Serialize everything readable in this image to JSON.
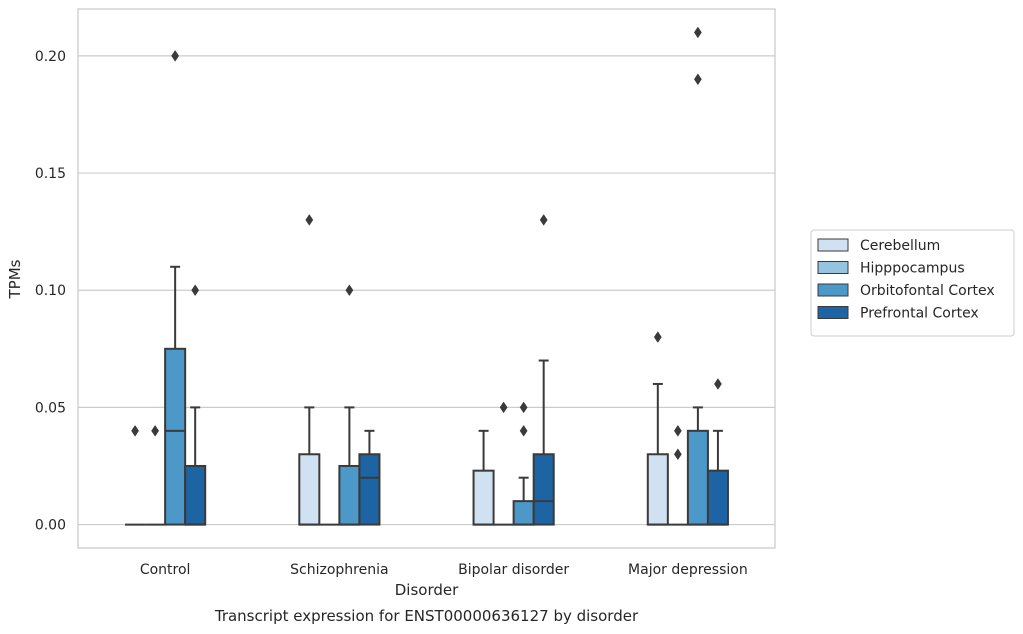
{
  "chart_data": {
    "type": "boxplot",
    "title": "Transcript expression for ENST00000636127 by disorder",
    "xlabel": "Disorder",
    "ylabel": "TPMs",
    "categories": [
      "Control",
      "Schizophrenia",
      "Bipolar disorder",
      "Major depression"
    ],
    "ylim": [
      -0.01,
      0.22
    ],
    "yticks": [
      0.0,
      0.05,
      0.1,
      0.15,
      0.2
    ],
    "ytick_labels": [
      "0.00",
      "0.05",
      "0.10",
      "0.15",
      "0.20"
    ],
    "grid": true,
    "legend_position": "right",
    "series": [
      {
        "name": "Cerebellum",
        "color": "#d0e1f2",
        "boxes": [
          {
            "q1": 0.0,
            "median": 0.0,
            "q3": 0.0,
            "whisker_low": 0.0,
            "whisker_high": 0.0,
            "outliers": [
              0.04
            ]
          },
          {
            "q1": 0.0,
            "median": 0.0,
            "q3": 0.03,
            "whisker_low": 0.0,
            "whisker_high": 0.05,
            "outliers": [
              0.13
            ]
          },
          {
            "q1": 0.0,
            "median": 0.0,
            "q3": 0.023,
            "whisker_low": 0.0,
            "whisker_high": 0.04,
            "outliers": []
          },
          {
            "q1": 0.0,
            "median": 0.0,
            "q3": 0.03,
            "whisker_low": 0.0,
            "whisker_high": 0.06,
            "outliers": [
              0.08
            ]
          }
        ]
      },
      {
        "name": "Hipppocampus",
        "color": "#94c4df",
        "boxes": [
          {
            "q1": 0.0,
            "median": 0.0,
            "q3": 0.0,
            "whisker_low": 0.0,
            "whisker_high": 0.0,
            "outliers": [
              0.04
            ]
          },
          {
            "q1": 0.0,
            "median": 0.0,
            "q3": 0.0,
            "whisker_low": 0.0,
            "whisker_high": 0.0,
            "outliers": []
          },
          {
            "q1": 0.0,
            "median": 0.0,
            "q3": 0.0,
            "whisker_low": 0.0,
            "whisker_high": 0.0,
            "outliers": [
              0.05
            ]
          },
          {
            "q1": 0.0,
            "median": 0.0,
            "q3": 0.0,
            "whisker_low": 0.0,
            "whisker_high": 0.0,
            "outliers": [
              0.03,
              0.04
            ]
          }
        ]
      },
      {
        "name": "Orbitofontal Cortex",
        "color": "#4b98c9",
        "boxes": [
          {
            "q1": 0.0,
            "median": 0.04,
            "q3": 0.075,
            "whisker_low": 0.0,
            "whisker_high": 0.11,
            "outliers": [
              0.2
            ]
          },
          {
            "q1": 0.0,
            "median": 0.0,
            "q3": 0.025,
            "whisker_low": 0.0,
            "whisker_high": 0.05,
            "outliers": [
              0.1
            ]
          },
          {
            "q1": 0.0,
            "median": 0.0,
            "q3": 0.01,
            "whisker_low": 0.0,
            "whisker_high": 0.02,
            "outliers": [
              0.04,
              0.05
            ]
          },
          {
            "q1": 0.0,
            "median": 0.0,
            "q3": 0.04,
            "whisker_low": 0.0,
            "whisker_high": 0.05,
            "outliers": [
              0.19,
              0.21
            ]
          }
        ]
      },
      {
        "name": "Prefrontal Cortex",
        "color": "#1d64a5",
        "boxes": [
          {
            "q1": 0.0,
            "median": 0.0,
            "q3": 0.025,
            "whisker_low": 0.0,
            "whisker_high": 0.05,
            "outliers": [
              0.1
            ]
          },
          {
            "q1": 0.0,
            "median": 0.02,
            "q3": 0.03,
            "whisker_low": 0.0,
            "whisker_high": 0.04,
            "outliers": []
          },
          {
            "q1": 0.0,
            "median": 0.01,
            "q3": 0.03,
            "whisker_low": 0.0,
            "whisker_high": 0.07,
            "outliers": [
              0.13
            ]
          },
          {
            "q1": 0.0,
            "median": 0.0,
            "q3": 0.023,
            "whisker_low": 0.0,
            "whisker_high": 0.04,
            "outliers": [
              0.06
            ]
          }
        ]
      }
    ]
  }
}
